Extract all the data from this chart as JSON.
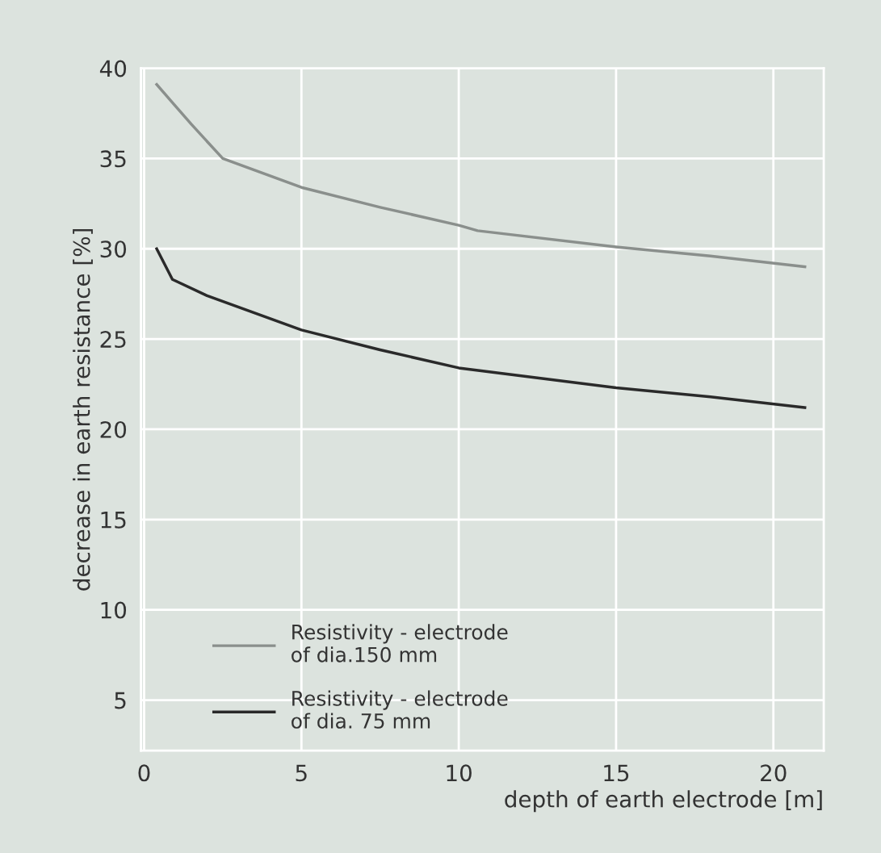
{
  "chart_data": {
    "type": "line",
    "xlabel": "depth of earth electrode [m]",
    "ylabel": "decrease in earth resistance [%]",
    "xlim": [
      -0.1,
      21.6
    ],
    "xticks": [
      0,
      5,
      10,
      15,
      20
    ],
    "ylim": [
      2.2,
      40
    ],
    "yticks": [
      5,
      10,
      15,
      20,
      25,
      30,
      35,
      40
    ],
    "grid": true,
    "legend": "bottom left",
    "line_style": "solid",
    "marker": "none",
    "series": [
      {
        "name": "Resistivity - electrode\nof dia.150 mm",
        "color": "#8a8f8c",
        "x": [
          0.4,
          0.9,
          1.5,
          2.5,
          5,
          7.5,
          10,
          10.6,
          15,
          18,
          21
        ],
        "values": [
          39.1,
          38.1,
          36.9,
          35.0,
          33.4,
          32.3,
          31.3,
          31.0,
          30.1,
          29.6,
          29.0
        ]
      },
      {
        "name": "Resistivity - electrode\nof dia. 75 mm",
        "color": "#2a2a2a",
        "x": [
          0.4,
          0.9,
          2,
          5,
          7.5,
          10,
          15,
          18,
          21
        ],
        "values": [
          30.0,
          28.3,
          27.4,
          25.5,
          24.4,
          23.4,
          22.3,
          21.8,
          21.2
        ]
      }
    ]
  }
}
